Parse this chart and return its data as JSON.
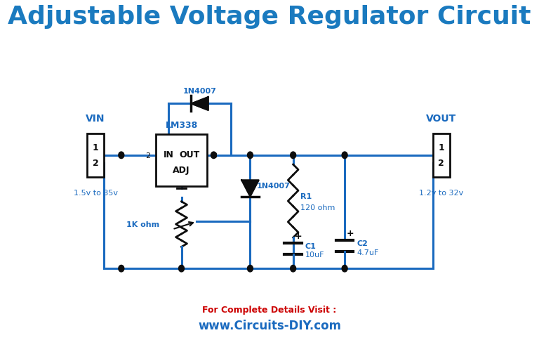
{
  "title": "Adjustable Voltage Regulator Circuit",
  "title_color": "#1a7abf",
  "title_fontsize": 26,
  "background_color": "#ffffff",
  "line_color": "#1a6abf",
  "line_width": 2.2,
  "dot_color": "#0d0d0d",
  "component_color": "#0d0d0d",
  "label_color": "#1a6abf",
  "footer_color1": "#cc0000",
  "footer_color2": "#1a6abf",
  "footer_text1": "For Complete Details Visit :",
  "footer_text2": "www.Circuits-DIY.com"
}
